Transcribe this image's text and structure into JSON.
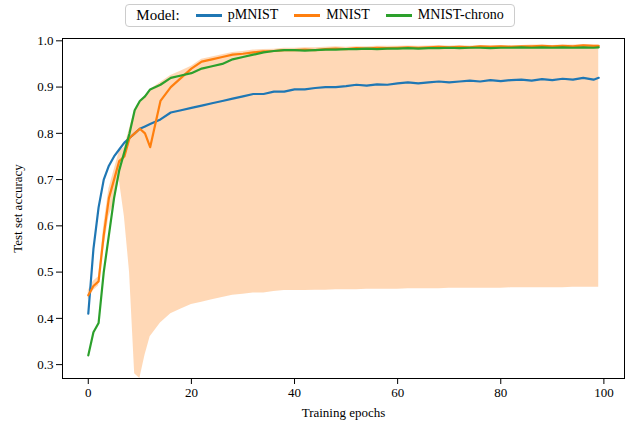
{
  "chart_data": {
    "type": "line",
    "x_label": "Training epochs",
    "y_label": "Test set accuracy",
    "legend_title": "Model:",
    "x": [
      0,
      1,
      2,
      3,
      4,
      5,
      6,
      7,
      8,
      9,
      10,
      11,
      12,
      14,
      16,
      18,
      20,
      22,
      24,
      26,
      28,
      30,
      32,
      34,
      36,
      38,
      40,
      42,
      44,
      46,
      48,
      50,
      52,
      54,
      56,
      58,
      60,
      62,
      64,
      66,
      68,
      70,
      72,
      74,
      76,
      78,
      80,
      82,
      84,
      86,
      88,
      90,
      92,
      94,
      96,
      98,
      99
    ],
    "series": [
      {
        "name": "pMNIST",
        "color": "#1f77b4",
        "values": [
          0.41,
          0.55,
          0.64,
          0.7,
          0.73,
          0.75,
          0.765,
          0.78,
          0.79,
          0.8,
          0.81,
          0.815,
          0.82,
          0.83,
          0.845,
          0.85,
          0.855,
          0.86,
          0.865,
          0.87,
          0.875,
          0.88,
          0.885,
          0.885,
          0.89,
          0.89,
          0.895,
          0.895,
          0.898,
          0.9,
          0.9,
          0.902,
          0.905,
          0.903,
          0.906,
          0.905,
          0.908,
          0.91,
          0.908,
          0.91,
          0.912,
          0.91,
          0.912,
          0.914,
          0.912,
          0.915,
          0.913,
          0.915,
          0.916,
          0.914,
          0.917,
          0.915,
          0.918,
          0.916,
          0.92,
          0.916,
          0.92
        ]
      },
      {
        "name": "MNIST",
        "color": "#ff7f0e",
        "values": [
          0.45,
          0.47,
          0.48,
          0.58,
          0.66,
          0.7,
          0.74,
          0.75,
          0.79,
          0.8,
          0.81,
          0.8,
          0.77,
          0.87,
          0.9,
          0.92,
          0.94,
          0.955,
          0.96,
          0.965,
          0.97,
          0.972,
          0.975,
          0.977,
          0.978,
          0.98,
          0.98,
          0.981,
          0.98,
          0.982,
          0.983,
          0.982,
          0.984,
          0.983,
          0.985,
          0.984,
          0.985,
          0.986,
          0.985,
          0.986,
          0.987,
          0.986,
          0.987,
          0.986,
          0.988,
          0.987,
          0.988,
          0.987,
          0.988,
          0.988,
          0.989,
          0.988,
          0.989,
          0.988,
          0.99,
          0.989,
          0.989
        ],
        "lower": [
          0.44,
          0.46,
          0.47,
          0.55,
          0.62,
          0.65,
          0.7,
          0.62,
          0.5,
          0.28,
          0.27,
          0.32,
          0.36,
          0.39,
          0.41,
          0.42,
          0.43,
          0.435,
          0.44,
          0.445,
          0.45,
          0.452,
          0.455,
          0.455,
          0.458,
          0.46,
          0.46,
          0.46,
          0.461,
          0.461,
          0.462,
          0.462,
          0.462,
          0.463,
          0.463,
          0.463,
          0.463,
          0.464,
          0.464,
          0.464,
          0.464,
          0.465,
          0.465,
          0.465,
          0.465,
          0.465,
          0.465,
          0.466,
          0.466,
          0.466,
          0.466,
          0.466,
          0.466,
          0.467,
          0.467,
          0.467,
          0.467
        ],
        "upper": [
          0.46,
          0.48,
          0.49,
          0.6,
          0.68,
          0.72,
          0.76,
          0.77,
          0.81,
          0.85,
          0.87,
          0.88,
          0.895,
          0.91,
          0.925,
          0.935,
          0.945,
          0.96,
          0.965,
          0.97,
          0.975,
          0.977,
          0.98,
          0.981,
          0.982,
          0.984,
          0.984,
          0.985,
          0.985,
          0.986,
          0.987,
          0.986,
          0.987,
          0.987,
          0.988,
          0.988,
          0.988,
          0.989,
          0.988,
          0.989,
          0.99,
          0.989,
          0.99,
          0.989,
          0.99,
          0.99,
          0.99,
          0.99,
          0.99,
          0.991,
          0.991,
          0.99,
          0.991,
          0.991,
          0.992,
          0.991,
          0.991
        ]
      },
      {
        "name": "MNIST-chrono",
        "color": "#2ca02c",
        "values": [
          0.32,
          0.37,
          0.39,
          0.5,
          0.58,
          0.66,
          0.72,
          0.76,
          0.8,
          0.85,
          0.87,
          0.88,
          0.895,
          0.905,
          0.92,
          0.925,
          0.93,
          0.94,
          0.945,
          0.95,
          0.96,
          0.965,
          0.97,
          0.975,
          0.978,
          0.98,
          0.98,
          0.979,
          0.98,
          0.981,
          0.981,
          0.982,
          0.982,
          0.983,
          0.982,
          0.983,
          0.983,
          0.984,
          0.983,
          0.984,
          0.984,
          0.985,
          0.984,
          0.985,
          0.985,
          0.984,
          0.985,
          0.985,
          0.986,
          0.985,
          0.986,
          0.985,
          0.986,
          0.985,
          0.986,
          0.985,
          0.986
        ]
      }
    ],
    "xlim": [
      -5,
      104
    ],
    "xticks": [
      0,
      20,
      40,
      60,
      80,
      100
    ],
    "ylim": [
      0.27,
      1.005
    ],
    "yticks": [
      0.3,
      0.4,
      0.5,
      0.6,
      0.7,
      0.8,
      0.9,
      {
        "value": 1,
        "label": "1.0"
      }
    ],
    "grid": false
  }
}
